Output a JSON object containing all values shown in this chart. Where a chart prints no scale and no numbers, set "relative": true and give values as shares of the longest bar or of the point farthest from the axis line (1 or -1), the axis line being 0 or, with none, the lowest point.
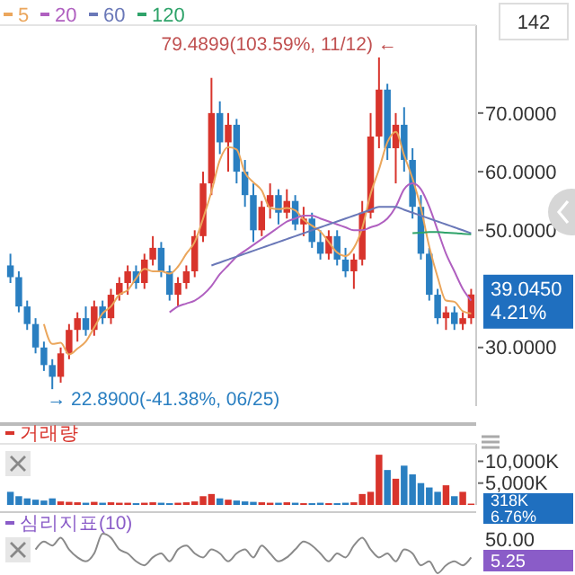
{
  "chart_data": [
    {
      "type": "candlestick",
      "legend": "top left",
      "categories": [
        null,
        null,
        null,
        null,
        null,
        null,
        null,
        null,
        null,
        null,
        null,
        null,
        null,
        null,
        null,
        null,
        null,
        null,
        null,
        null,
        null,
        null,
        null,
        null,
        null,
        null,
        null,
        null,
        null,
        null,
        null,
        null,
        null,
        null,
        null,
        null,
        null,
        null,
        null,
        null,
        null,
        null,
        null,
        null,
        null,
        null,
        null,
        null,
        null,
        null,
        null,
        null,
        null,
        null,
        null,
        null
      ],
      "ohlc": [
        [
          44,
          46,
          41,
          42
        ],
        [
          42,
          43,
          36,
          37
        ],
        [
          37,
          38,
          33,
          34
        ],
        [
          34,
          35,
          29,
          30
        ],
        [
          30,
          31,
          26,
          27
        ],
        [
          27,
          28,
          22.89,
          25
        ],
        [
          25,
          30,
          24,
          29
        ],
        [
          29,
          34,
          28,
          33
        ],
        [
          33,
          36,
          31,
          35
        ],
        [
          35,
          37,
          32,
          33
        ],
        [
          33,
          38,
          32,
          37
        ],
        [
          37,
          38,
          34,
          35
        ],
        [
          35,
          40,
          34,
          39
        ],
        [
          39,
          42,
          38,
          41
        ],
        [
          41,
          44,
          39,
          43
        ],
        [
          43,
          44,
          40,
          41
        ],
        [
          41,
          46,
          40,
          45
        ],
        [
          45,
          49,
          44,
          47
        ],
        [
          47,
          48,
          42,
          43
        ],
        [
          43,
          44,
          38,
          39
        ],
        [
          39,
          42,
          37,
          41
        ],
        [
          41,
          44,
          40,
          43
        ],
        [
          43,
          50,
          42,
          49
        ],
        [
          49,
          60,
          48,
          58
        ],
        [
          58,
          76,
          56,
          70
        ],
        [
          70,
          72,
          63,
          65
        ],
        [
          65,
          70,
          60,
          68
        ],
        [
          68,
          69,
          58,
          60
        ],
        [
          60,
          62,
          54,
          56
        ],
        [
          56,
          58,
          48,
          50
        ],
        [
          50,
          55,
          49,
          54
        ],
        [
          54,
          58,
          52,
          56
        ],
        [
          56,
          57,
          51,
          53
        ],
        [
          53,
          57,
          52,
          55
        ],
        [
          55,
          56,
          50,
          51
        ],
        [
          51,
          54,
          49,
          52
        ],
        [
          52,
          53,
          47,
          48
        ],
        [
          48,
          50,
          45,
          46
        ],
        [
          46,
          50,
          45,
          49
        ],
        [
          49,
          50,
          44,
          45
        ],
        [
          45,
          47,
          42,
          43
        ],
        [
          43,
          46,
          40,
          45
        ],
        [
          45,
          55,
          44,
          53
        ],
        [
          53,
          70,
          52,
          66
        ],
        [
          66,
          79.4899,
          64,
          74
        ],
        [
          74,
          75,
          62,
          64
        ],
        [
          64,
          70,
          58,
          68
        ],
        [
          68,
          71,
          60,
          62
        ],
        [
          62,
          64,
          52,
          54
        ],
        [
          54,
          56,
          45,
          46
        ],
        [
          46,
          47,
          38,
          39
        ],
        [
          39,
          40,
          34,
          35
        ],
        [
          35,
          37,
          33,
          36
        ],
        [
          36,
          37,
          33,
          34
        ],
        [
          34,
          36,
          33,
          35
        ],
        [
          35,
          40,
          34,
          39.045
        ]
      ],
      "colors": [
        "#2a7fc1",
        "#2a7fc1",
        "#2a7fc1",
        "#2a7fc1",
        "#2a7fc1",
        "#2a7fc1",
        "#d8342c",
        "#d8342c",
        "#d8342c",
        "#2a7fc1",
        "#d8342c",
        "#2a7fc1",
        "#d8342c",
        "#d8342c",
        "#d8342c",
        "#2a7fc1",
        "#d8342c",
        "#d8342c",
        "#2a7fc1",
        "#2a7fc1",
        "#d8342c",
        "#d8342c",
        "#d8342c",
        "#d8342c",
        "#d8342c",
        "#2a7fc1",
        "#d8342c",
        "#2a7fc1",
        "#2a7fc1",
        "#2a7fc1",
        "#d8342c",
        "#d8342c",
        "#2a7fc1",
        "#d8342c",
        "#2a7fc1",
        "#d8342c",
        "#2a7fc1",
        "#2a7fc1",
        "#d8342c",
        "#2a7fc1",
        "#2a7fc1",
        "#d8342c",
        "#d8342c",
        "#d8342c",
        "#d8342c",
        "#2a7fc1",
        "#d8342c",
        "#2a7fc1",
        "#2a7fc1",
        "#2a7fc1",
        "#2a7fc1",
        "#2a7fc1",
        "#d8342c",
        "#2a7fc1",
        "#d8342c",
        "#d8342c"
      ],
      "series": [
        {
          "type": "line",
          "name": "5",
          "color": "#eba65c",
          "values": [
            null,
            null,
            null,
            null,
            34,
            30.6,
            30.8,
            28.8,
            29.8,
            31,
            33.4,
            35.8,
            37,
            39,
            39.8,
            41.8,
            43.4,
            43,
            43,
            42.6,
            43.8,
            46,
            48,
            52,
            56.6,
            62,
            64.2,
            63.8,
            59.8,
            58.2,
            56.8,
            53.8,
            53.6,
            53.8,
            53.4,
            51.8,
            50.8,
            49.8,
            48,
            46.2,
            45.6,
            47,
            50.4,
            56.2,
            60.4,
            65,
            66.8,
            62.8,
            58.8,
            53.8,
            47.2,
            42,
            38,
            37.8,
            36.2,
            35.8
          ]
        },
        {
          "type": "line",
          "name": "20",
          "color": "#b060c0",
          "values": [
            null,
            null,
            null,
            null,
            null,
            null,
            null,
            null,
            null,
            null,
            null,
            null,
            null,
            null,
            null,
            null,
            null,
            null,
            null,
            36,
            37,
            37.5,
            38,
            39,
            40.5,
            42.5,
            44,
            45.5,
            46.5,
            47.5,
            48.5,
            49.5,
            50.5,
            51.5,
            52,
            52.5,
            52.5,
            52,
            51.5,
            51,
            50.5,
            50,
            50,
            50.5,
            51,
            52,
            54,
            57,
            58,
            57,
            54,
            50,
            46,
            43,
            40,
            38
          ]
        },
        {
          "type": "line",
          "name": "60",
          "color": "#6a78b8",
          "values": [
            null,
            null,
            null,
            null,
            null,
            null,
            null,
            null,
            null,
            null,
            null,
            null,
            null,
            null,
            null,
            null,
            null,
            null,
            null,
            null,
            null,
            null,
            null,
            null,
            44,
            44.5,
            45,
            45.5,
            46,
            46.5,
            47,
            47.5,
            48,
            48.5,
            49,
            49.5,
            50,
            50.5,
            51,
            51.5,
            52,
            52.5,
            53,
            53.5,
            54,
            54,
            54,
            53.5,
            53,
            52.5,
            52,
            51.5,
            51,
            50.5,
            50,
            49.5
          ]
        },
        {
          "type": "line",
          "name": "120",
          "color": "#2fa36a",
          "values": [
            null,
            null,
            null,
            null,
            null,
            null,
            null,
            null,
            null,
            null,
            null,
            null,
            null,
            null,
            null,
            null,
            null,
            null,
            null,
            null,
            null,
            null,
            null,
            null,
            null,
            null,
            null,
            null,
            null,
            null,
            null,
            null,
            null,
            null,
            null,
            null,
            null,
            null,
            null,
            null,
            null,
            null,
            null,
            null,
            null,
            null,
            null,
            null,
            49.5,
            49.6,
            49.7,
            49.7,
            49.6,
            49.5,
            49.4,
            49.3
          ]
        }
      ],
      "ylim": [
        20,
        85
      ],
      "yticks": [
        {
          "value": 30,
          "label": "30.0000"
        },
        {
          "value": 50,
          "label": "50.0000"
        },
        {
          "value": 60,
          "label": "60.0000"
        },
        {
          "value": 70,
          "label": "70.0000"
        }
      ],
      "annotations": [
        "142",
        "79.4899(103.59%, 11/12) ←",
        "→ 22.8900(-41.38%, 06/25)",
        "39.0450",
        "4.21%"
      ]
    },
    {
      "type": "bar",
      "title": "거래량",
      "categories": [
        null,
        null,
        null,
        null,
        null,
        null,
        null,
        null,
        null,
        null,
        null,
        null,
        null,
        null,
        null,
        null,
        null,
        null,
        null,
        null,
        null,
        null,
        null,
        null,
        null,
        null,
        null,
        null,
        null,
        null,
        null,
        null,
        null,
        null,
        null,
        null,
        null,
        null,
        null,
        null,
        null,
        null,
        null,
        null,
        null,
        null,
        null,
        null,
        null,
        null,
        null,
        null,
        null,
        null,
        null,
        null
      ],
      "values": [
        3000,
        2000,
        1500,
        1200,
        1000,
        1500,
        800,
        700,
        600,
        500,
        700,
        500,
        600,
        500,
        500,
        400,
        500,
        600,
        500,
        400,
        500,
        600,
        800,
        2000,
        2500,
        1500,
        1200,
        1000,
        800,
        700,
        600,
        500,
        500,
        600,
        500,
        400,
        400,
        500,
        400,
        400,
        500,
        600,
        2500,
        3000,
        11500,
        8000,
        6000,
        9000,
        7000,
        5000,
        4000,
        3000,
        4500,
        2000,
        3000,
        300
      ],
      "colors": [
        "#2a7fc1",
        "#2a7fc1",
        "#2a7fc1",
        "#2a7fc1",
        "#2a7fc1",
        "#2a7fc1",
        "#d8342c",
        "#d8342c",
        "#d8342c",
        "#2a7fc1",
        "#d8342c",
        "#2a7fc1",
        "#d8342c",
        "#d8342c",
        "#d8342c",
        "#2a7fc1",
        "#d8342c",
        "#d8342c",
        "#2a7fc1",
        "#2a7fc1",
        "#d8342c",
        "#d8342c",
        "#d8342c",
        "#d8342c",
        "#d8342c",
        "#2a7fc1",
        "#d8342c",
        "#2a7fc1",
        "#2a7fc1",
        "#2a7fc1",
        "#d8342c",
        "#d8342c",
        "#2a7fc1",
        "#d8342c",
        "#2a7fc1",
        "#d8342c",
        "#2a7fc1",
        "#2a7fc1",
        "#d8342c",
        "#2a7fc1",
        "#2a7fc1",
        "#d8342c",
        "#d8342c",
        "#d8342c",
        "#d8342c",
        "#2a7fc1",
        "#d8342c",
        "#2a7fc1",
        "#2a7fc1",
        "#2a7fc1",
        "#2a7fc1",
        "#2a7fc1",
        "#d8342c",
        "#2a7fc1",
        "#d8342c",
        "#d8342c"
      ],
      "ylim": [
        0,
        14000
      ],
      "yticks": [
        {
          "value": 5000,
          "label": "5,000K"
        },
        {
          "value": 10000,
          "label": "10,000K"
        }
      ],
      "annotations": [
        "318K",
        "6.76%"
      ]
    },
    {
      "type": "line",
      "title": "심리지표(10)",
      "relative": true,
      "categories": [
        null,
        null,
        null,
        null,
        null,
        null,
        null,
        null,
        null,
        null,
        null,
        null,
        null,
        null,
        null,
        null,
        null,
        null,
        null,
        null,
        null,
        null,
        null,
        null,
        null,
        null,
        null,
        null,
        null,
        null,
        null,
        null,
        null,
        null,
        null,
        null,
        null,
        null,
        null,
        null,
        null,
        null,
        null,
        null,
        null,
        null,
        null,
        null,
        null,
        null,
        null,
        null,
        null,
        null,
        null,
        null
      ],
      "series": [
        {
          "color": "#8a8a8a",
          "values": [
            null,
            null,
            null,
            0.6,
            0.8,
            0.7,
            0.9,
            0.6,
            0.4,
            0.3,
            0.5,
            1,
            0.9,
            0.6,
            0.5,
            0.3,
            0.2,
            0.4,
            0.5,
            0.3,
            0.6,
            0.7,
            0.5,
            0.4,
            0.6,
            0.5,
            0.3,
            0.5,
            0.6,
            0.4,
            0.7,
            0.5,
            0.3,
            0.4,
            0.6,
            0.8,
            0.7,
            0.5,
            0.3,
            0.5,
            0.4,
            0.7,
            0.9,
            0.6,
            0.4,
            0.5,
            0.3,
            0.6,
            0.5,
            0.2,
            0.3,
            0,
            0.2,
            0.3,
            0.2,
            0.4
          ]
        }
      ],
      "annotations": [
        "50.00",
        "5.25"
      ]
    }
  ]
}
